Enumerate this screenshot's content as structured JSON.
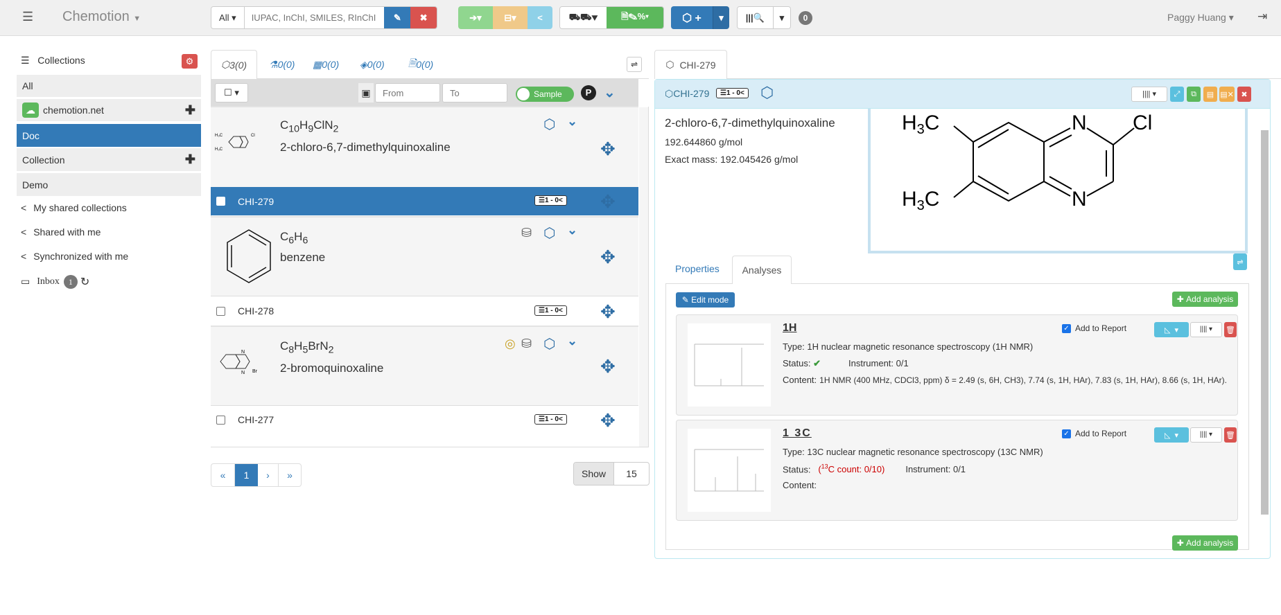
{
  "navbar": {
    "brand": "Chemotion",
    "search_scope": "All",
    "search_placeholder": "IUPAC, InChI, SMILES, RInChI",
    "notification_count": "0",
    "user": "Paggy Huang",
    "colors": {
      "blue": "#337ab7",
      "red": "#d9534f",
      "green": "#5cb85c",
      "orange": "#f0ad4e",
      "cyan": "#5bc0de"
    }
  },
  "sidebar": {
    "title": "Collections",
    "items": [
      {
        "label": "All"
      },
      {
        "label": "chemotion.net"
      },
      {
        "label": "Doc",
        "active": true
      },
      {
        "label": "Collection"
      },
      {
        "label": "Demo"
      }
    ],
    "links": [
      {
        "label": "My shared collections"
      },
      {
        "label": "Shared with me"
      },
      {
        "label": "Synchronized with me"
      }
    ],
    "inbox": {
      "label": "Inbox",
      "count": "1"
    }
  },
  "list": {
    "tabs": [
      {
        "label": "3(0)",
        "icon": "sample-icon"
      },
      {
        "label": "0(0)",
        "icon": "reaction-icon"
      },
      {
        "label": "0(0)",
        "icon": "wellplate-icon"
      },
      {
        "label": "0(0)",
        "icon": "screen-icon"
      },
      {
        "label": "0(0)",
        "icon": "research-plan-icon"
      }
    ],
    "filter": {
      "from_placeholder": "From",
      "to_placeholder": "To",
      "toggle_label": "Sample",
      "p_label": "P"
    },
    "samples": [
      {
        "formula_main": "C",
        "f": [
          [
            "C",
            "10"
          ],
          [
            "H",
            "9"
          ],
          [
            "ClN",
            "2"
          ]
        ],
        "name": "2-chloro-6,7-dimethylquinoxaline",
        "id": "CHI-279",
        "badge": "1 - 0",
        "selected": true
      },
      {
        "f": [
          [
            "C",
            "6"
          ],
          [
            "H",
            "6"
          ]
        ],
        "name": "benzene",
        "id": "CHI-278",
        "badge": "1 - 0"
      },
      {
        "f": [
          [
            "C",
            "8"
          ],
          [
            "H",
            "5"
          ],
          [
            "BrN",
            "2"
          ]
        ],
        "name": "2-bromoquinoxaline",
        "id": "CHI-277",
        "badge": "1 - 0"
      }
    ],
    "pagination": {
      "first": "«",
      "current": "1",
      "next": "›",
      "last": "»"
    },
    "show_label": "Show",
    "show_value": "15"
  },
  "detail": {
    "tab": "CHI-279",
    "header_id": "CHI-279",
    "header_badge": "1 - 0",
    "name": "2-chloro-6,7-dimethylquinoxaline",
    "mw": "192.644860 g/mol",
    "exact_mass": "Exact mass: 192.045426 g/mol",
    "tabs": [
      "Properties",
      "Analyses"
    ],
    "edit_mode": "Edit mode",
    "add_analysis": "Add analysis",
    "analyses": [
      {
        "title": "1H",
        "type": "Type: 1H nuclear magnetic resonance spectroscopy (1H NMR)",
        "status_label": "Status:",
        "instrument": "Instrument: 0/1",
        "content_label": "Content:",
        "content": "1H NMR (400 MHz, CDCl3, ppm) δ = 2.49 (s, 6H, CH3), 7.74 (s, 1H, HAr), 7.83 (s, 1H, HAr), 8.66 (s, 1H, HAr).",
        "report": "Add to Report"
      },
      {
        "title": "1 3C",
        "type": "Type: 13C nuclear magnetic resonance spectroscopy (13C NMR)",
        "status_label": "Status:",
        "status_warn_sup": "13",
        "status_warn": "C count: 0/10)",
        "instrument": "Instrument: 0/1",
        "content_label": "Content:",
        "content": "",
        "report": "Add to Report"
      }
    ]
  }
}
